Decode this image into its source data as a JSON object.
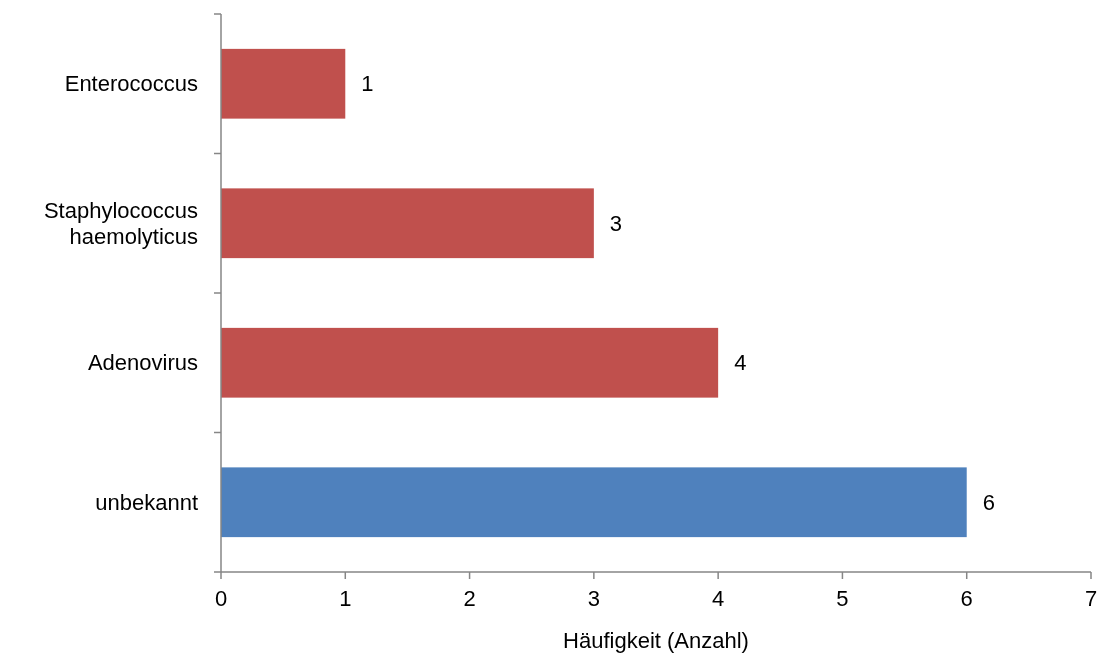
{
  "chart_data": {
    "type": "bar",
    "orientation": "horizontal",
    "xlabel": "Häufigkeit (Anzahl)",
    "categories": [
      "Enterococcus",
      "Staphylococcus haemolyticus",
      "Adenovirus",
      "unbekannt"
    ],
    "values": [
      1,
      3,
      4,
      6
    ],
    "colors": [
      "#c0504d",
      "#c0504d",
      "#c0504d",
      "#4f81bd"
    ],
    "xlim": [
      0,
      7
    ],
    "xticks": [
      0,
      1,
      2,
      3,
      4,
      5,
      6,
      7
    ],
    "grid": false,
    "data_labels": true
  }
}
